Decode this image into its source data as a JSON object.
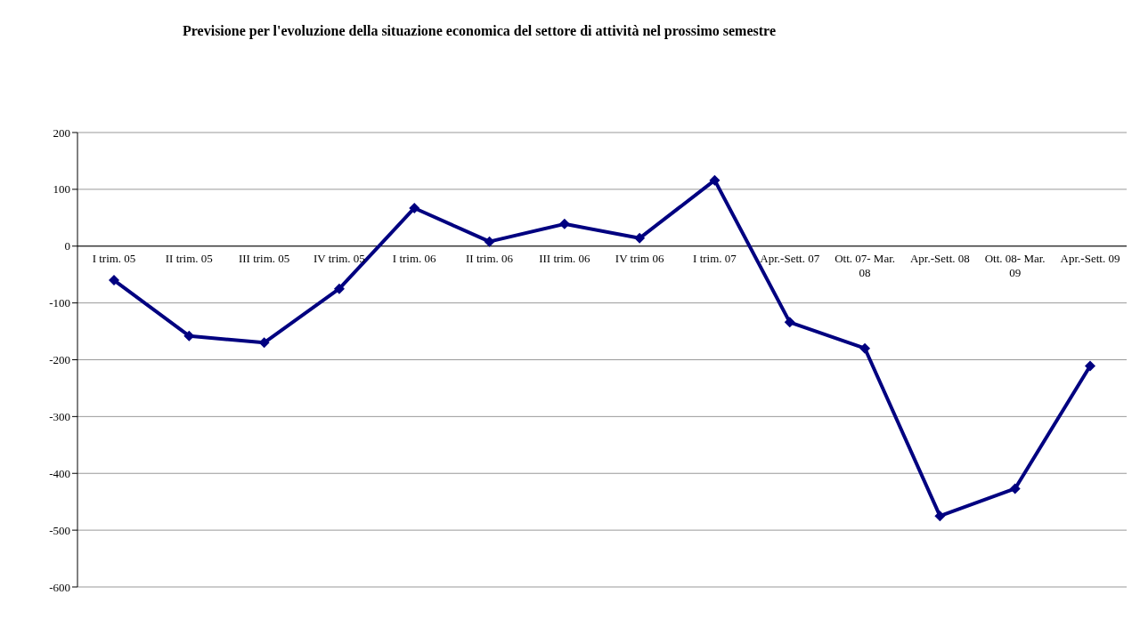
{
  "chart_data": {
    "type": "line",
    "title": "Previsione per l'evoluzione della situazione economica del settore di attività nel prossimo semestre",
    "categories": [
      "I trim. 05",
      "II trim. 05",
      "III trim. 05",
      "IV trim. 05",
      "I trim. 06",
      "II trim. 06",
      "III trim. 06",
      "IV trim 06",
      "I trim. 07",
      "Apr.-Sett. 07",
      "Ott. 07- Mar. 08",
      "Apr.-Sett. 08",
      "Ott. 08- Mar. 09",
      "Apr.-Sett. 09"
    ],
    "series": [
      {
        "color": "#000080",
        "values": [
          -60,
          -158,
          -170,
          -75,
          67,
          8,
          39,
          14,
          116,
          -134,
          -180,
          -475,
          -427,
          -211
        ]
      }
    ],
    "ylim": [
      -600,
      200
    ],
    "yticks": [
      -600,
      -500,
      -400,
      -300,
      -200,
      -100,
      0,
      100,
      200
    ],
    "grid": "y",
    "marker": "diamond",
    "legend": false
  }
}
